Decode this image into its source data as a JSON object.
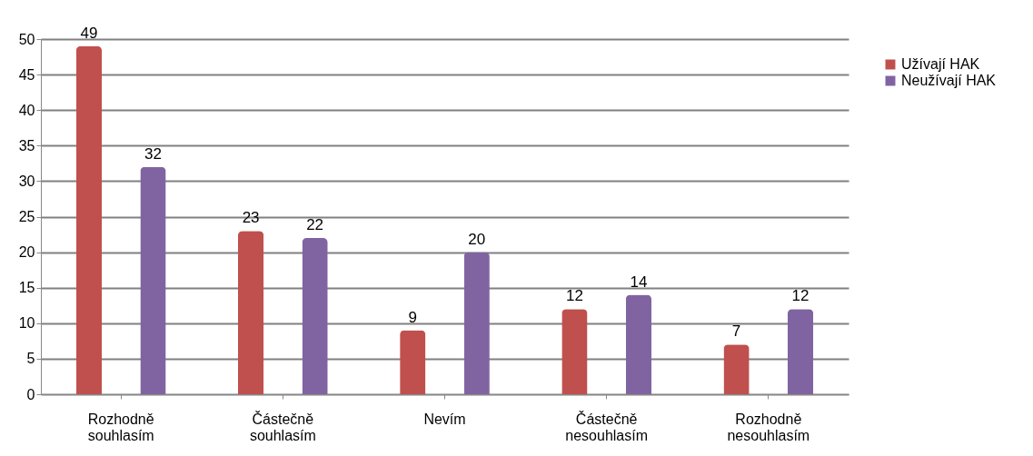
{
  "chart_data": {
    "type": "bar",
    "categories": [
      "Rozhodně souhlasím",
      "Částečně souhlasím",
      "Nevím",
      "Částečně nesouhlasím",
      "Rozhodně nesouhlasím"
    ],
    "series": [
      {
        "name": "Užívají HAK",
        "color": "#c0504d",
        "values": [
          49,
          23,
          9,
          12,
          7
        ]
      },
      {
        "name": "Neužívají HAK",
        "color": "#8064a2",
        "values": [
          32,
          22,
          20,
          14,
          12
        ]
      }
    ],
    "ylim": [
      0,
      50
    ],
    "yticks": [
      0,
      5,
      10,
      15,
      20,
      25,
      30,
      35,
      40,
      45,
      50
    ],
    "grid": "y",
    "legend": "right",
    "data_labels": true
  }
}
